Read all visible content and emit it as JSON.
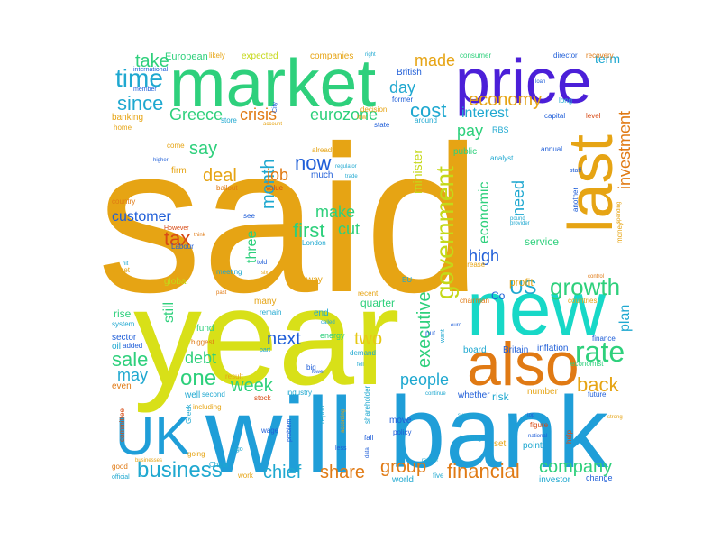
{
  "words": [
    {
      "text": "said",
      "weight": 100,
      "color": "#e6a414"
    },
    {
      "text": "year",
      "weight": 64,
      "color": "#d8e018"
    },
    {
      "text": "will",
      "weight": 50,
      "color": "#1f9ed8"
    },
    {
      "text": "bank",
      "weight": 47,
      "color": "#1f9ed8"
    },
    {
      "text": "market",
      "weight": 33,
      "color": "#2ed07c"
    },
    {
      "text": "price",
      "weight": 32,
      "color": "#4b1fd8"
    },
    {
      "text": "new",
      "weight": 34,
      "color": "#17d8c7"
    },
    {
      "text": "also",
      "weight": 30,
      "color": "#e07a14"
    },
    {
      "text": "last",
      "weight": 30,
      "color": "#e6a414"
    },
    {
      "text": "UK",
      "weight": 25,
      "color": "#1f9ed8"
    },
    {
      "text": "government",
      "weight": 14,
      "color": "#c5d818"
    },
    {
      "text": "growth",
      "weight": 14,
      "color": "#2ed07c"
    },
    {
      "text": "rate",
      "weight": 15,
      "color": "#2ed07c"
    },
    {
      "text": "economy",
      "weight": 12,
      "color": "#e6a414"
    },
    {
      "text": "month",
      "weight": 12,
      "color": "#1fa8d0"
    },
    {
      "text": "time",
      "weight": 12,
      "color": "#1fa8d0"
    },
    {
      "text": "since",
      "weight": 11,
      "color": "#1fa8d0"
    },
    {
      "text": "business",
      "weight": 11,
      "color": "#1fa8d0"
    },
    {
      "text": "company",
      "weight": 10,
      "color": "#2ed07c"
    },
    {
      "text": "financial",
      "weight": 11,
      "color": "#e07a14"
    },
    {
      "text": "share",
      "weight": 11,
      "color": "#e07a14"
    },
    {
      "text": "chief",
      "weight": 11,
      "color": "#1fa8d0"
    },
    {
      "text": "one",
      "weight": 11,
      "color": "#2ed07c"
    },
    {
      "text": "people",
      "weight": 10,
      "color": "#1fa8d0"
    },
    {
      "text": "back",
      "weight": 10,
      "color": "#e6a414"
    },
    {
      "text": "US",
      "weight": 11,
      "color": "#1fa8d0"
    },
    {
      "text": "now",
      "weight": 10,
      "color": "#1f5ed8"
    },
    {
      "text": "first",
      "weight": 10,
      "color": "#2ed07c"
    },
    {
      "text": "executive",
      "weight": 10,
      "color": "#2ed07c"
    },
    {
      "text": "investment",
      "weight": 9,
      "color": "#e07a14"
    },
    {
      "text": "cost",
      "weight": 9,
      "color": "#1fa8d0"
    },
    {
      "text": "interest",
      "weight": 8,
      "color": "#1fa8d0"
    },
    {
      "text": "pay",
      "weight": 8,
      "color": "#2ed07c"
    },
    {
      "text": "group",
      "weight": 9,
      "color": "#e07a14"
    },
    {
      "text": "sale",
      "weight": 9,
      "color": "#2ed07c"
    },
    {
      "text": "week",
      "weight": 9,
      "color": "#2ed07c"
    },
    {
      "text": "two",
      "weight": 9,
      "color": "#e6c814"
    },
    {
      "text": "next",
      "weight": 8,
      "color": "#1f5ed8"
    },
    {
      "text": "make",
      "weight": 8,
      "color": "#2ed07c"
    },
    {
      "text": "cut",
      "weight": 8,
      "color": "#2ed07c"
    },
    {
      "text": "high",
      "weight": 8,
      "color": "#1f5ed8"
    },
    {
      "text": "need",
      "weight": 8,
      "color": "#1fa8d0"
    },
    {
      "text": "economic",
      "weight": 7,
      "color": "#2ed07c"
    },
    {
      "text": "crisis",
      "weight": 8,
      "color": "#e07a14"
    },
    {
      "text": "Greece",
      "weight": 8,
      "color": "#2ed07c"
    },
    {
      "text": "say",
      "weight": 8,
      "color": "#2ed07c"
    },
    {
      "text": "deal",
      "weight": 8,
      "color": "#e6a414"
    },
    {
      "text": "job",
      "weight": 7,
      "color": "#e07a14"
    },
    {
      "text": "tax",
      "weight": 8,
      "color": "#d84a14"
    },
    {
      "text": "customer",
      "weight": 8,
      "color": "#1f5ed8"
    },
    {
      "text": "three",
      "weight": 7,
      "color": "#2ed07c"
    },
    {
      "text": "made",
      "weight": 7,
      "color": "#e6a414"
    },
    {
      "text": "day",
      "weight": 7,
      "color": "#1fa8d0"
    },
    {
      "text": "take",
      "weight": 7,
      "color": "#2ed07c"
    },
    {
      "text": "eurozone",
      "weight": 7,
      "color": "#2ed07c"
    },
    {
      "text": "minister",
      "weight": 6,
      "color": "#c5d818"
    },
    {
      "text": "plan",
      "weight": 7,
      "color": "#1fa8d0"
    },
    {
      "text": "may",
      "weight": 7,
      "color": "#1fa8d0"
    },
    {
      "text": "debt",
      "weight": 7,
      "color": "#2ed07c"
    },
    {
      "text": "still",
      "weight": 6,
      "color": "#2ed07c"
    },
    {
      "text": "service",
      "weight": 6,
      "color": "#2ed07c"
    },
    {
      "text": "quarter",
      "weight": 5,
      "color": "#2ed07c"
    },
    {
      "text": "term",
      "weight": 5,
      "color": "#1fa8d0"
    },
    {
      "text": "expected",
      "weight": 4,
      "color": "#c5d818"
    },
    {
      "text": "companies",
      "weight": 4,
      "color": "#e6a414"
    },
    {
      "text": "European",
      "weight": 4,
      "color": "#2ed07c"
    },
    {
      "text": "banking",
      "weight": 4,
      "color": "#e6a414"
    },
    {
      "text": "member",
      "weight": 3,
      "color": "#1f5ed8"
    },
    {
      "text": "home",
      "weight": 3,
      "color": "#e6a414"
    },
    {
      "text": "store",
      "weight": 3,
      "color": "#1fa8d0"
    },
    {
      "text": "come",
      "weight": 3,
      "color": "#e6a414"
    },
    {
      "text": "firm",
      "weight": 4,
      "color": "#e6a414"
    },
    {
      "text": "bailout",
      "weight": 3,
      "color": "#e07a14"
    },
    {
      "text": "value",
      "weight": 3,
      "color": "#d84a14"
    },
    {
      "text": "country",
      "weight": 3,
      "color": "#e07a14"
    },
    {
      "text": "see",
      "weight": 3,
      "color": "#1f5ed8"
    },
    {
      "text": "However",
      "weight": 3,
      "color": "#d84a14"
    },
    {
      "text": "Labour",
      "weight": 3,
      "color": "#1f5ed8"
    },
    {
      "text": "think",
      "weight": 2,
      "color": "#e07a14"
    },
    {
      "text": "London",
      "weight": 3,
      "color": "#1fa8d0"
    },
    {
      "text": "street",
      "weight": 3,
      "color": "#e6a414"
    },
    {
      "text": "meeting",
      "weight": 3,
      "color": "#1fa8d0"
    },
    {
      "text": "global",
      "weight": 3,
      "color": "#c5d818"
    },
    {
      "text": "rise",
      "weight": 5,
      "color": "#2ed07c"
    },
    {
      "text": "system",
      "weight": 4,
      "color": "#1fa8d0"
    },
    {
      "text": "sector",
      "weight": 4,
      "color": "#1f5ed8"
    },
    {
      "text": "oil",
      "weight": 4,
      "color": "#1fa8d0"
    },
    {
      "text": "added",
      "weight": 3,
      "color": "#1f5ed8"
    },
    {
      "text": "fund",
      "weight": 4,
      "color": "#2ed07c"
    },
    {
      "text": "biggest",
      "weight": 3,
      "color": "#e07a14"
    },
    {
      "text": "even",
      "weight": 4,
      "color": "#e07a14"
    },
    {
      "text": "well",
      "weight": 4,
      "color": "#1fa8d0"
    },
    {
      "text": "second",
      "weight": 3,
      "color": "#1fa8d0"
    },
    {
      "text": "result",
      "weight": 3,
      "color": "#e6a414"
    },
    {
      "text": "stock",
      "weight": 3,
      "color": "#d84a14"
    },
    {
      "text": "including",
      "weight": 3,
      "color": "#e6a414"
    },
    {
      "text": "industry",
      "weight": 4,
      "color": "#1fa8d0"
    },
    {
      "text": "big",
      "weight": 3,
      "color": "#1f5ed8"
    },
    {
      "text": "energy",
      "weight": 4,
      "color": "#2ed07c"
    },
    {
      "text": "part",
      "weight": 3,
      "color": "#1fa8d0"
    },
    {
      "text": "many",
      "weight": 4,
      "color": "#e6a414"
    },
    {
      "text": "remain",
      "weight": 3,
      "color": "#1fa8d0"
    },
    {
      "text": "end",
      "weight": 4,
      "color": "#1fa8d0"
    },
    {
      "text": "way",
      "weight": 4,
      "color": "#e6a414"
    },
    {
      "text": "told",
      "weight": 3,
      "color": "#1f5ed8"
    },
    {
      "text": "recent",
      "weight": 3,
      "color": "#e6a414"
    },
    {
      "text": "public",
      "weight": 4,
      "color": "#2ed07c"
    },
    {
      "text": "already",
      "weight": 3,
      "color": "#e6a414"
    },
    {
      "text": "much",
      "weight": 4,
      "color": "#1f5ed8"
    },
    {
      "text": "world",
      "weight": 4,
      "color": "#1fa8d0"
    },
    {
      "text": "move",
      "weight": 4,
      "color": "#1f5ed8"
    },
    {
      "text": "policy",
      "weight": 4,
      "color": "#1f5ed8"
    },
    {
      "text": "fall",
      "weight": 4,
      "color": "#1f5ed8"
    },
    {
      "text": "less",
      "weight": 3,
      "color": "#1f5ed8"
    },
    {
      "text": "report",
      "weight": 4,
      "color": "#1fa8d0"
    },
    {
      "text": "wage",
      "weight": 3,
      "color": "#1f5ed8"
    },
    {
      "text": "problem",
      "weight": 3,
      "color": "#1f5ed8"
    },
    {
      "text": "China",
      "weight": 3,
      "color": "#1fa8d0"
    },
    {
      "text": "work",
      "weight": 3,
      "color": "#e6a414"
    },
    {
      "text": "going",
      "weight": 3,
      "color": "#e6a414"
    },
    {
      "text": "Greek",
      "weight": 3,
      "color": "#1fa8d0"
    },
    {
      "text": "ago",
      "weight": 3,
      "color": "#1fa8d0"
    },
    {
      "text": "committee",
      "weight": 3,
      "color": "#d84a14"
    },
    {
      "text": "good",
      "weight": 3,
      "color": "#e07a14"
    },
    {
      "text": "official",
      "weight": 3,
      "color": "#1fa8d0"
    },
    {
      "text": "businesses",
      "weight": 2,
      "color": "#e6a414"
    },
    {
      "text": "investor",
      "weight": 4,
      "color": "#1fa8d0"
    },
    {
      "text": "change",
      "weight": 3,
      "color": "#1f5ed8"
    },
    {
      "text": "point",
      "weight": 4,
      "color": "#1fa8d0"
    },
    {
      "text": "set",
      "weight": 4,
      "color": "#e6a414"
    },
    {
      "text": "trading",
      "weight": 3,
      "color": "#1fa8d0"
    },
    {
      "text": "five",
      "weight": 3,
      "color": "#1fa8d0"
    },
    {
      "text": "shareholder",
      "weight": 3,
      "color": "#1fa8d0"
    },
    {
      "text": "according",
      "weight": 2,
      "color": "#e6a414"
    },
    {
      "text": "data",
      "weight": 2,
      "color": "#1f5ed8"
    },
    {
      "text": "retailer",
      "weight": 2,
      "color": "#1fa8d0"
    },
    {
      "text": "number",
      "weight": 4,
      "color": "#e6a414"
    },
    {
      "text": "risk",
      "weight": 4,
      "color": "#1fa8d0"
    },
    {
      "text": "whether",
      "weight": 4,
      "color": "#1f5ed8"
    },
    {
      "text": "continue",
      "weight": 2,
      "color": "#1fa8d0"
    },
    {
      "text": "future",
      "weight": 3,
      "color": "#1f5ed8"
    },
    {
      "text": "economist",
      "weight": 3,
      "color": "#2ed07c"
    },
    {
      "text": "finance",
      "weight": 3,
      "color": "#1f5ed8"
    },
    {
      "text": "inflation",
      "weight": 4,
      "color": "#1f5ed8"
    },
    {
      "text": "Britain",
      "weight": 3,
      "color": "#1f5ed8"
    },
    {
      "text": "board",
      "weight": 4,
      "color": "#1fa8d0"
    },
    {
      "text": "chairman",
      "weight": 3,
      "color": "#e07a14"
    },
    {
      "text": "profit",
      "weight": 4,
      "color": "#e6a414"
    },
    {
      "text": "increase",
      "weight": 3,
      "color": "#e6a414"
    },
    {
      "text": "countries",
      "weight": 3,
      "color": "#e6a414"
    },
    {
      "text": "spending",
      "weight": 2,
      "color": "#e6a414"
    },
    {
      "text": "another",
      "weight": 3,
      "color": "#1f5ed8"
    },
    {
      "text": "staff",
      "weight": 3,
      "color": "#1f5ed8"
    },
    {
      "text": "annual",
      "weight": 3,
      "color": "#1f5ed8"
    },
    {
      "text": "capital",
      "weight": 3,
      "color": "#1f5ed8"
    },
    {
      "text": "level",
      "weight": 3,
      "color": "#d84a14"
    },
    {
      "text": "long",
      "weight": 3,
      "color": "#1fa8d0"
    },
    {
      "text": "loan",
      "weight": 2,
      "color": "#1f5ed8"
    },
    {
      "text": "director",
      "weight": 3,
      "color": "#1f5ed8"
    },
    {
      "text": "recovery",
      "weight": 3,
      "color": "#e07a14"
    },
    {
      "text": "consumer",
      "weight": 3,
      "color": "#2ed07c"
    },
    {
      "text": "British",
      "weight": 3,
      "color": "#1f5ed8"
    },
    {
      "text": "former",
      "weight": 3,
      "color": "#1f5ed8"
    },
    {
      "text": "around",
      "weight": 3,
      "color": "#1fa8d0"
    },
    {
      "text": "decision",
      "weight": 3,
      "color": "#e6a414"
    },
    {
      "text": "low",
      "weight": 3,
      "color": "#e6a414"
    },
    {
      "text": "state",
      "weight": 3,
      "color": "#1f5ed8"
    },
    {
      "text": "account",
      "weight": 2,
      "color": "#e6a414"
    },
    {
      "text": "City",
      "weight": 2,
      "color": "#1f5ed8"
    },
    {
      "text": "likely",
      "weight": 3,
      "color": "#e6a414"
    },
    {
      "text": "international",
      "weight": 2,
      "color": "#1f5ed8"
    },
    {
      "text": "higher",
      "weight": 2,
      "color": "#1f5ed8"
    },
    {
      "text": "regulator",
      "weight": 2,
      "color": "#1fa8d0"
    },
    {
      "text": "trade",
      "weight": 2,
      "color": "#1fa8d0"
    },
    {
      "text": "right",
      "weight": 2,
      "color": "#1fa8d0"
    },
    {
      "text": "RBS",
      "weight": 3,
      "color": "#1fa8d0"
    },
    {
      "text": "analyst",
      "weight": 3,
      "color": "#1fa8d0"
    },
    {
      "text": "pound",
      "weight": 2,
      "color": "#1fa8d0"
    },
    {
      "text": "EU",
      "weight": 3,
      "color": "#1fa8d0"
    },
    {
      "text": "put",
      "weight": 3,
      "color": "#1f5ed8"
    },
    {
      "text": "want",
      "weight": 3,
      "color": "#1fa8d0"
    },
    {
      "text": "demand",
      "weight": 3,
      "color": "#1fa8d0"
    },
    {
      "text": "Co",
      "weight": 4,
      "color": "#1f5ed8"
    },
    {
      "text": "euro",
      "weight": 2,
      "color": "#1f5ed8"
    },
    {
      "text": "money",
      "weight": 3,
      "color": "#e6a414"
    },
    {
      "text": "help",
      "weight": 3,
      "color": "#d84a14"
    },
    {
      "text": "figure",
      "weight": 3,
      "color": "#d84a14"
    },
    {
      "text": "top",
      "weight": 2,
      "color": "#1f5ed8"
    },
    {
      "text": "support",
      "weight": 2,
      "color": "#1fa8d0"
    },
    {
      "text": "strong",
      "weight": 2,
      "color": "#e6a414"
    },
    {
      "text": "control",
      "weight": 2,
      "color": "#e07a14"
    },
    {
      "text": "past",
      "weight": 2,
      "color": "#e07a14"
    },
    {
      "text": "six",
      "weight": 2,
      "color": "#e6a414"
    },
    {
      "text": "hit",
      "weight": 2,
      "color": "#1fa8d0"
    },
    {
      "text": "national",
      "weight": 2,
      "color": "#1f5ed8"
    },
    {
      "text": "called",
      "weight": 2,
      "color": "#1fa8d0"
    },
    {
      "text": "fell",
      "weight": 2,
      "color": "#1fa8d0"
    },
    {
      "text": "lower",
      "weight": 2,
      "color": "#1f5ed8"
    },
    {
      "text": "provider",
      "weight": 2,
      "color": "#1fa8d0"
    }
  ]
}
